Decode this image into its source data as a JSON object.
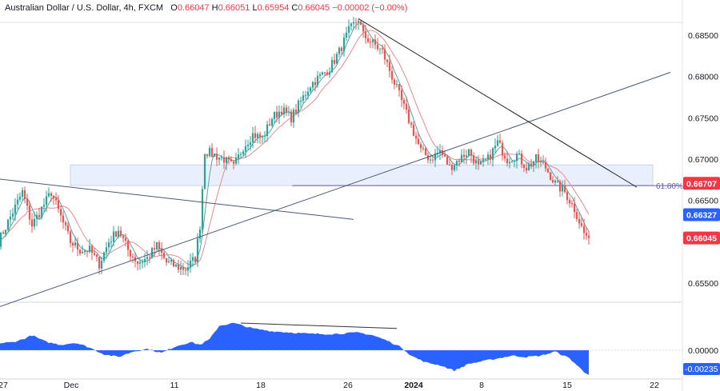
{
  "header": {
    "title": "Australian Dollar / U.S. Dollar, 4h, FXCM",
    "o_label": "O",
    "o_value": "0.66047",
    "h_label": "H",
    "h_value": "0.66051",
    "l_label": "L",
    "l_value": "0.65954",
    "c_label": "C",
    "c_value": "0.66045",
    "change": "−0.00002 (−0.00%)"
  },
  "colors": {
    "up": "#26a69a",
    "down": "#ef5350",
    "ma_fast": "#5aa0a8",
    "ma_slow": "#e68a8f",
    "trendline": "#4a5a75",
    "resistance": "#222222",
    "fib": "#6b5ba8",
    "zone": "#eaf0fb",
    "histogram": "#2962ff",
    "price_tag": "#f23645",
    "level_tag": "#2962ff"
  },
  "chart_data": [
    {
      "type": "candlestick",
      "symbol": "AUDUSD",
      "timeframe": "4h",
      "ylim": [
        0.6525,
        0.687
      ],
      "y_ticks": [
        "0.68500",
        "0.68000",
        "0.67500",
        "0.67000",
        "0.66500",
        "0.65500"
      ],
      "x_ticks": [
        "27",
        "Dec",
        "11",
        "18",
        "26",
        "2024",
        "8",
        "15",
        "22"
      ],
      "price_tags": [
        {
          "label": "0.66707",
          "value": 0.66707,
          "style": "dark"
        },
        {
          "label": "0.66327",
          "value": 0.66327,
          "style": "level"
        },
        {
          "label": "0.66045",
          "value": 0.66045,
          "style": "last"
        }
      ],
      "fib_label": "61.80%",
      "fib_level": 0.6668,
      "zone": {
        "x_from": 12,
        "x_to": 98,
        "y_from": 0.6668,
        "y_to": 0.6693
      },
      "waypoints": [
        [
          0,
          0.66
        ],
        [
          5,
          0.663
        ],
        [
          10,
          0.666
        ],
        [
          14,
          0.662
        ],
        [
          18,
          0.664
        ],
        [
          22,
          0.666
        ],
        [
          26,
          0.663
        ],
        [
          30,
          0.66
        ],
        [
          34,
          0.659
        ],
        [
          38,
          0.659
        ],
        [
          42,
          0.6573
        ],
        [
          46,
          0.66
        ],
        [
          50,
          0.6615
        ],
        [
          54,
          0.659
        ],
        [
          58,
          0.6575
        ],
        [
          62,
          0.658
        ],
        [
          66,
          0.6595
        ],
        [
          70,
          0.6575
        ],
        [
          74,
          0.657
        ],
        [
          78,
          0.6567
        ],
        [
          82,
          0.658
        ],
        [
          84,
          0.662
        ],
        [
          86,
          0.671
        ],
        [
          90,
          0.6705
        ],
        [
          94,
          0.67
        ],
        [
          98,
          0.669
        ],
        [
          102,
          0.6715
        ],
        [
          106,
          0.673
        ],
        [
          110,
          0.6725
        ],
        [
          114,
          0.675
        ],
        [
          118,
          0.676
        ],
        [
          122,
          0.675
        ],
        [
          126,
          0.677
        ],
        [
          130,
          0.679
        ],
        [
          134,
          0.68
        ],
        [
          138,
          0.681
        ],
        [
          142,
          0.683
        ],
        [
          146,
          0.6855
        ],
        [
          150,
          0.687
        ],
        [
          152,
          0.685
        ],
        [
          156,
          0.684
        ],
        [
          160,
          0.683
        ],
        [
          164,
          0.68
        ],
        [
          168,
          0.677
        ],
        [
          172,
          0.674
        ],
        [
          176,
          0.671
        ],
        [
          180,
          0.67
        ],
        [
          184,
          0.671
        ],
        [
          188,
          0.669
        ],
        [
          192,
          0.67
        ],
        [
          196,
          0.671
        ],
        [
          200,
          0.669
        ],
        [
          204,
          0.67
        ],
        [
          208,
          0.672
        ],
        [
          212,
          0.67
        ],
        [
          216,
          0.6705
        ],
        [
          220,
          0.669
        ],
        [
          224,
          0.67
        ],
        [
          228,
          0.669
        ],
        [
          232,
          0.667
        ],
        [
          236,
          0.666
        ],
        [
          240,
          0.664
        ],
        [
          244,
          0.661
        ],
        [
          246,
          0.6605
        ]
      ],
      "trendlines": [
        {
          "name": "support",
          "from": [
            -60,
            0.646
          ],
          "to": [
            280,
            0.6805
          ]
        },
        {
          "name": "old-resistance",
          "from": [
            0,
            0.6676
          ],
          "to": [
            148,
            0.6627
          ]
        },
        {
          "name": "resistance",
          "from": [
            150,
            0.687
          ],
          "to": [
            266,
            0.6666
          ]
        }
      ],
      "divergence_line": {
        "from": [
          101,
          1.0
        ],
        "to": [
          166,
          0.8
        ]
      }
    },
    {
      "type": "area",
      "name": "oscillator",
      "ylim": [
        -0.0035,
        0.0045
      ],
      "y_ticks": [
        "0.00000"
      ],
      "last_label": "-0.00235",
      "waypoints": [
        [
          0,
          0.25
        ],
        [
          6,
          0.3
        ],
        [
          10,
          0.4
        ],
        [
          14,
          0.55
        ],
        [
          20,
          0.3
        ],
        [
          26,
          0.2
        ],
        [
          32,
          0.28
        ],
        [
          38,
          0.1
        ],
        [
          44,
          -0.15
        ],
        [
          50,
          -0.25
        ],
        [
          56,
          -0.05
        ],
        [
          62,
          0.05
        ],
        [
          68,
          -0.1
        ],
        [
          74,
          0.15
        ],
        [
          80,
          0.3
        ],
        [
          84,
          0.2
        ],
        [
          88,
          0.4
        ],
        [
          92,
          0.9
        ],
        [
          98,
          1.0
        ],
        [
          106,
          0.8
        ],
        [
          114,
          0.7
        ],
        [
          122,
          0.65
        ],
        [
          130,
          0.6
        ],
        [
          140,
          0.6
        ],
        [
          150,
          0.65
        ],
        [
          156,
          0.55
        ],
        [
          162,
          0.35
        ],
        [
          168,
          0.1
        ],
        [
          172,
          -0.2
        ],
        [
          178,
          -0.45
        ],
        [
          184,
          -0.55
        ],
        [
          190,
          -0.75
        ],
        [
          196,
          -0.5
        ],
        [
          202,
          -0.4
        ],
        [
          208,
          -0.3
        ],
        [
          214,
          -0.2
        ],
        [
          220,
          -0.25
        ],
        [
          226,
          -0.2
        ],
        [
          232,
          -0.05
        ],
        [
          238,
          -0.3
        ],
        [
          244,
          -0.8
        ],
        [
          246,
          -0.88
        ]
      ]
    }
  ]
}
